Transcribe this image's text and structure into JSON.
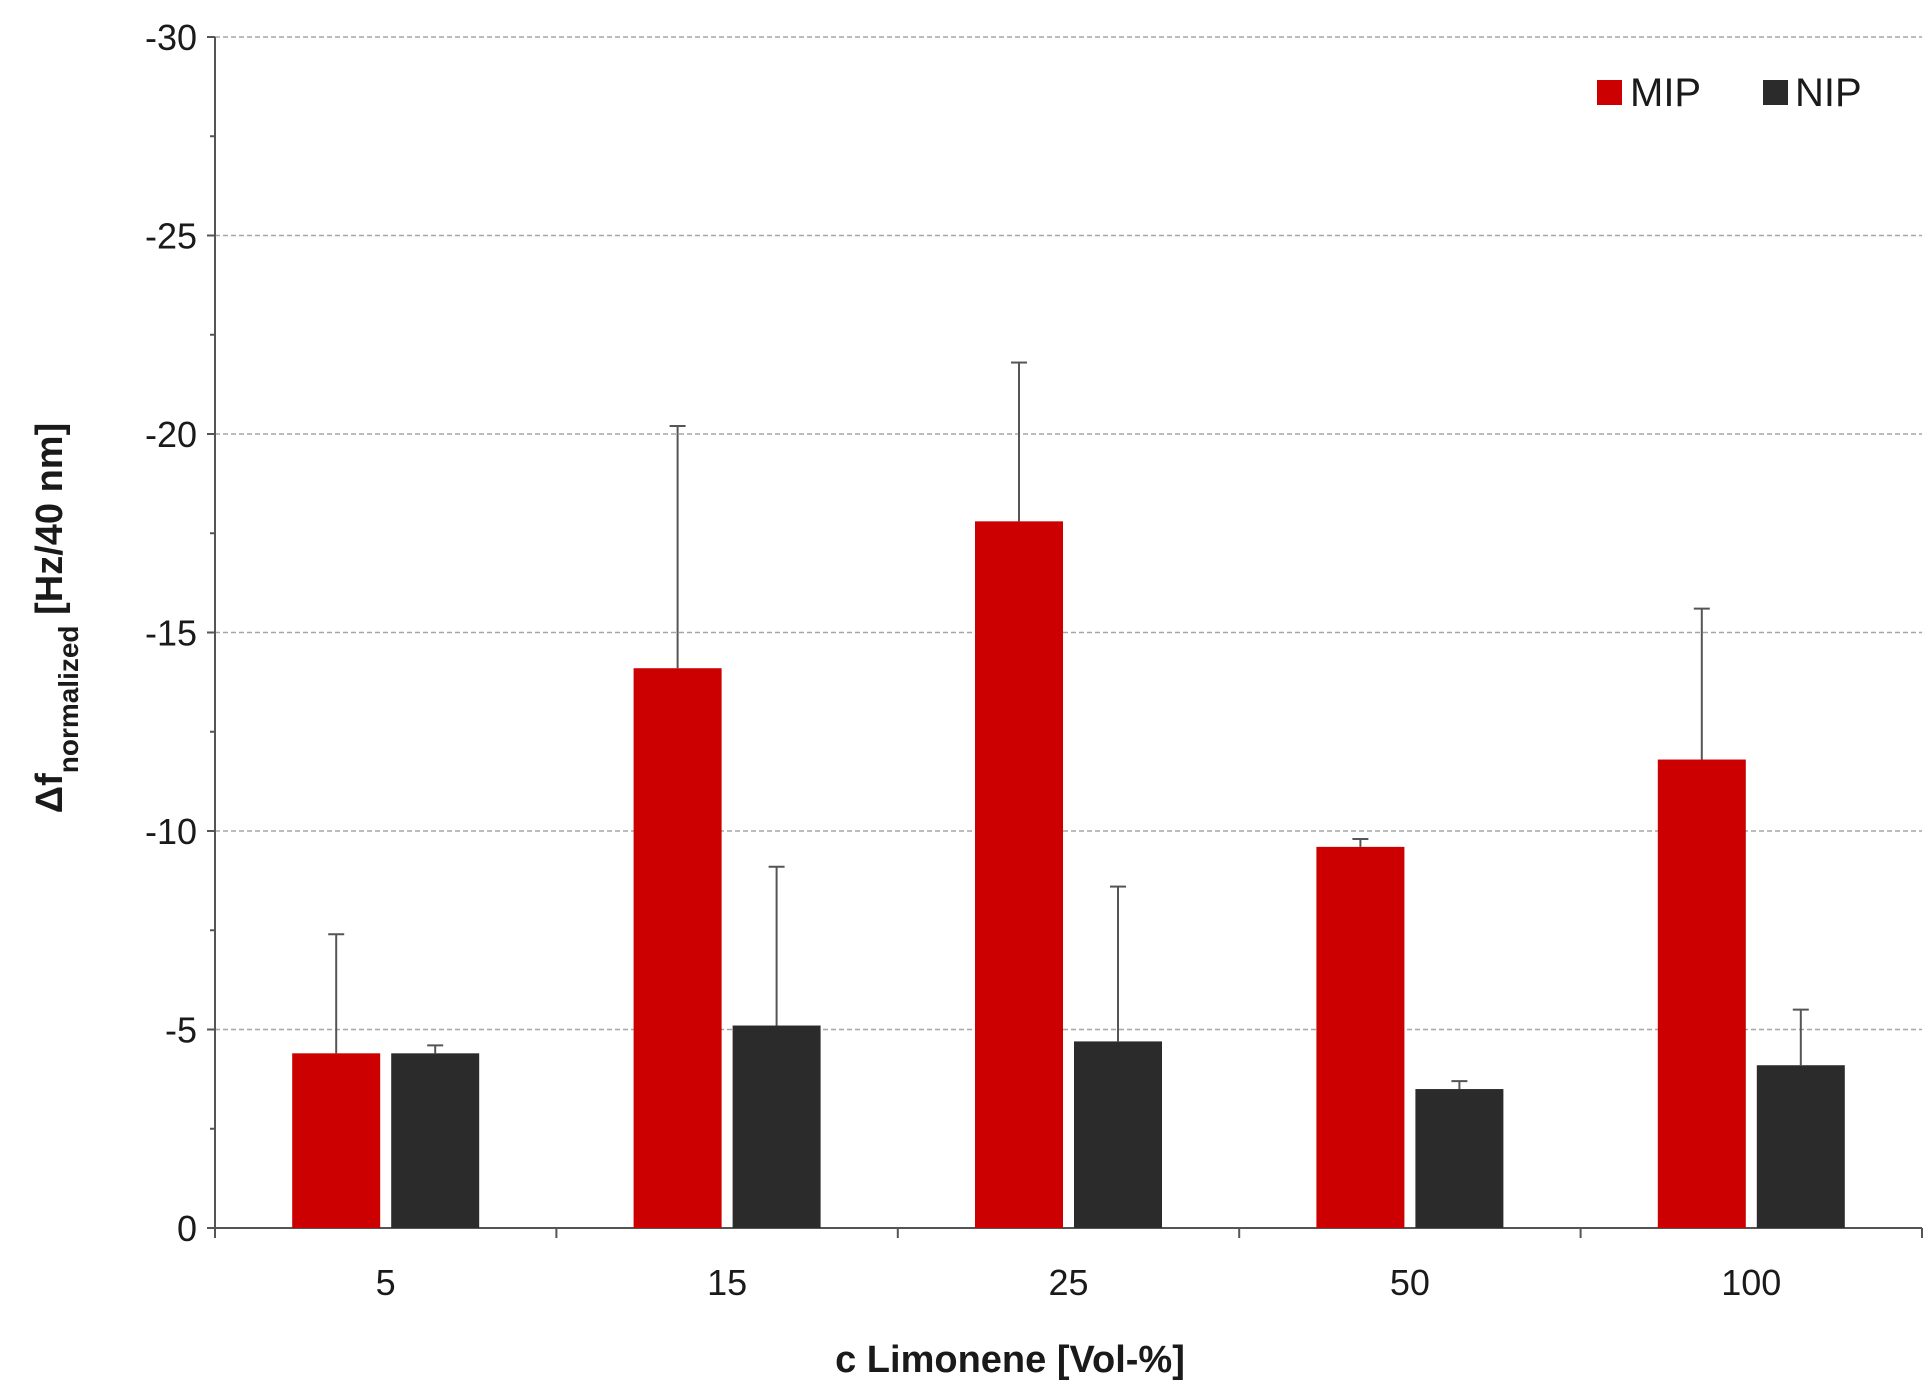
{
  "chart_data": {
    "type": "bar",
    "title": "",
    "xlabel": "c Limonene [Vol-%]",
    "ylabel": {
      "prefix": "Δf",
      "subscript": "normalized",
      "suffix": " [Hz/40 nm]"
    },
    "categories": [
      "5",
      "15",
      "25",
      "50",
      "100"
    ],
    "ylim": [
      0,
      -30
    ],
    "yticks": [
      0,
      -5,
      -10,
      -15,
      -20,
      -25,
      -30
    ],
    "ytick_labels": [
      "0",
      "-5",
      "-10",
      "-15",
      "-20",
      "-25",
      "-30"
    ],
    "grid": true,
    "legend_position": "top-right",
    "series": [
      {
        "name": "MIP",
        "color": "#cc0000",
        "values": [
          -4.4,
          -14.1,
          -17.8,
          -9.6,
          -11.8
        ],
        "error": [
          3.0,
          6.1,
          4.0,
          0.2,
          3.8
        ]
      },
      {
        "name": "NIP",
        "color": "#2b2b2b",
        "values": [
          -4.4,
          -5.1,
          -4.7,
          -3.5,
          -4.1
        ],
        "error": [
          0.2,
          4.0,
          3.9,
          0.2,
          1.4
        ]
      }
    ]
  }
}
